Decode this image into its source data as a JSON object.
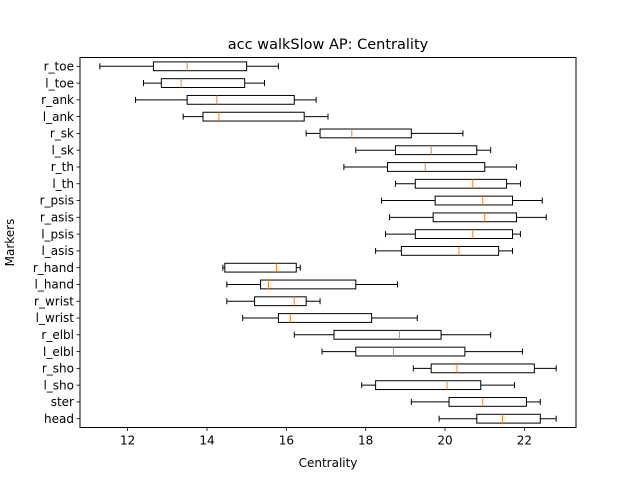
{
  "chart_data": {
    "type": "boxplot",
    "orientation": "horizontal",
    "title": "acc walkSlow AP: Centrality",
    "xlabel": "Centrality",
    "ylabel": "Markers",
    "xlim": [
      10.8,
      23.3
    ],
    "xticks": [
      12,
      14,
      16,
      18,
      20,
      22
    ],
    "grid": false,
    "legend": "none",
    "colors": {
      "box": "#000000",
      "median": "#ff7f0e",
      "background": "#ffffff"
    },
    "categories": [
      "r_toe",
      "l_toe",
      "r_ank",
      "l_ank",
      "r_sk",
      "l_sk",
      "r_th",
      "l_th",
      "r_psis",
      "r_asis",
      "l_psis",
      "l_asis",
      "r_hand",
      "l_hand",
      "r_wrist",
      "l_wrist",
      "r_elbl",
      "l_elbl",
      "r_sho",
      "l_sho",
      "ster",
      "head"
    ],
    "boxes": [
      {
        "label": "r_toe",
        "whislo": 11.3,
        "q1": 12.65,
        "med": 13.5,
        "q3": 15.0,
        "whishi": 15.8
      },
      {
        "label": "l_toe",
        "whislo": 12.4,
        "q1": 12.85,
        "med": 13.35,
        "q3": 14.95,
        "whishi": 15.45
      },
      {
        "label": "r_ank",
        "whislo": 12.2,
        "q1": 13.5,
        "med": 14.25,
        "q3": 16.2,
        "whishi": 16.75
      },
      {
        "label": "l_ank",
        "whislo": 13.4,
        "q1": 13.9,
        "med": 14.3,
        "q3": 16.45,
        "whishi": 17.05
      },
      {
        "label": "r_sk",
        "whislo": 16.5,
        "q1": 16.85,
        "med": 17.65,
        "q3": 19.15,
        "whishi": 20.45
      },
      {
        "label": "l_sk",
        "whislo": 17.75,
        "q1": 18.75,
        "med": 19.65,
        "q3": 20.8,
        "whishi": 21.15
      },
      {
        "label": "r_th",
        "whislo": 17.45,
        "q1": 18.55,
        "med": 19.5,
        "q3": 21.0,
        "whishi": 21.8
      },
      {
        "label": "l_th",
        "whislo": 18.75,
        "q1": 19.25,
        "med": 20.7,
        "q3": 21.55,
        "whishi": 21.9
      },
      {
        "label": "r_psis",
        "whislo": 18.4,
        "q1": 19.75,
        "med": 20.95,
        "q3": 21.7,
        "whishi": 22.45
      },
      {
        "label": "r_asis",
        "whislo": 18.6,
        "q1": 19.7,
        "med": 21.0,
        "q3": 21.8,
        "whishi": 22.55
      },
      {
        "label": "l_psis",
        "whislo": 18.5,
        "q1": 19.25,
        "med": 20.7,
        "q3": 21.7,
        "whishi": 21.9
      },
      {
        "label": "l_asis",
        "whislo": 18.25,
        "q1": 18.9,
        "med": 20.35,
        "q3": 21.35,
        "whishi": 21.7
      },
      {
        "label": "r_hand",
        "whislo": 14.4,
        "q1": 14.45,
        "med": 15.75,
        "q3": 16.25,
        "whishi": 16.35
      },
      {
        "label": "l_hand",
        "whislo": 14.5,
        "q1": 15.35,
        "med": 15.55,
        "q3": 17.75,
        "whishi": 18.8
      },
      {
        "label": "r_wrist",
        "whislo": 14.5,
        "q1": 15.2,
        "med": 16.2,
        "q3": 16.5,
        "whishi": 16.85
      },
      {
        "label": "l_wrist",
        "whislo": 14.9,
        "q1": 15.8,
        "med": 16.1,
        "q3": 18.15,
        "whishi": 19.3
      },
      {
        "label": "r_elbl",
        "whislo": 16.2,
        "q1": 17.2,
        "med": 18.85,
        "q3": 19.9,
        "whishi": 21.15
      },
      {
        "label": "l_elbl",
        "whislo": 16.9,
        "q1": 17.75,
        "med": 18.7,
        "q3": 20.5,
        "whishi": 21.95
      },
      {
        "label": "r_sho",
        "whislo": 19.2,
        "q1": 19.65,
        "med": 20.3,
        "q3": 22.25,
        "whishi": 22.8
      },
      {
        "label": "l_sho",
        "whislo": 17.9,
        "q1": 18.25,
        "med": 20.05,
        "q3": 20.9,
        "whishi": 21.75
      },
      {
        "label": "ster",
        "whislo": 19.15,
        "q1": 20.1,
        "med": 20.95,
        "q3": 22.05,
        "whishi": 22.4
      },
      {
        "label": "head",
        "whislo": 19.85,
        "q1": 20.8,
        "med": 21.45,
        "q3": 22.4,
        "whishi": 22.8
      }
    ]
  }
}
